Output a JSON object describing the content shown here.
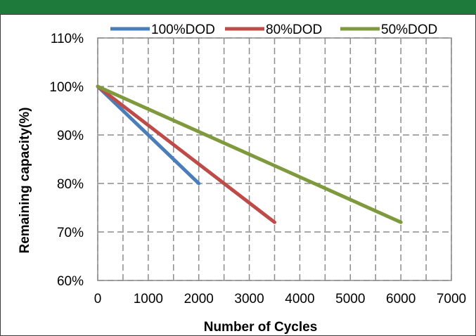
{
  "colors": {
    "header_bar": "#1e7a3a",
    "grid": "#8c8c8c",
    "border": "#3c3c3c"
  },
  "chart_data": {
    "type": "line",
    "title": "",
    "xlabel": "Number of Cycles",
    "ylabel": "Remaining capacity(%)",
    "xlim": [
      0,
      7000
    ],
    "ylim": [
      60,
      110
    ],
    "x_ticks": [
      0,
      1000,
      2000,
      3000,
      4000,
      5000,
      6000,
      7000
    ],
    "x_tick_labels": [
      "0",
      "1000",
      "2000",
      "3000",
      "4000",
      "5000",
      "6000",
      "7000"
    ],
    "y_ticks": [
      60,
      70,
      80,
      90,
      100,
      110
    ],
    "y_tick_labels": [
      "60%",
      "70%",
      "80%",
      "90%",
      "100%",
      "110%"
    ],
    "grid": true,
    "grid_style": "dashed",
    "minor_x_grid_step": 500,
    "legend_position": "top",
    "series": [
      {
        "name": "100%DOD",
        "color": "#4a7ebb",
        "x": [
          0,
          2000
        ],
        "y": [
          100,
          80
        ]
      },
      {
        "name": "80%DOD",
        "color": "#be4b48",
        "x": [
          0,
          3500
        ],
        "y": [
          100,
          72
        ]
      },
      {
        "name": "50%DOD",
        "color": "#7f9a3c",
        "x": [
          0,
          6000
        ],
        "y": [
          100,
          72
        ]
      }
    ]
  }
}
